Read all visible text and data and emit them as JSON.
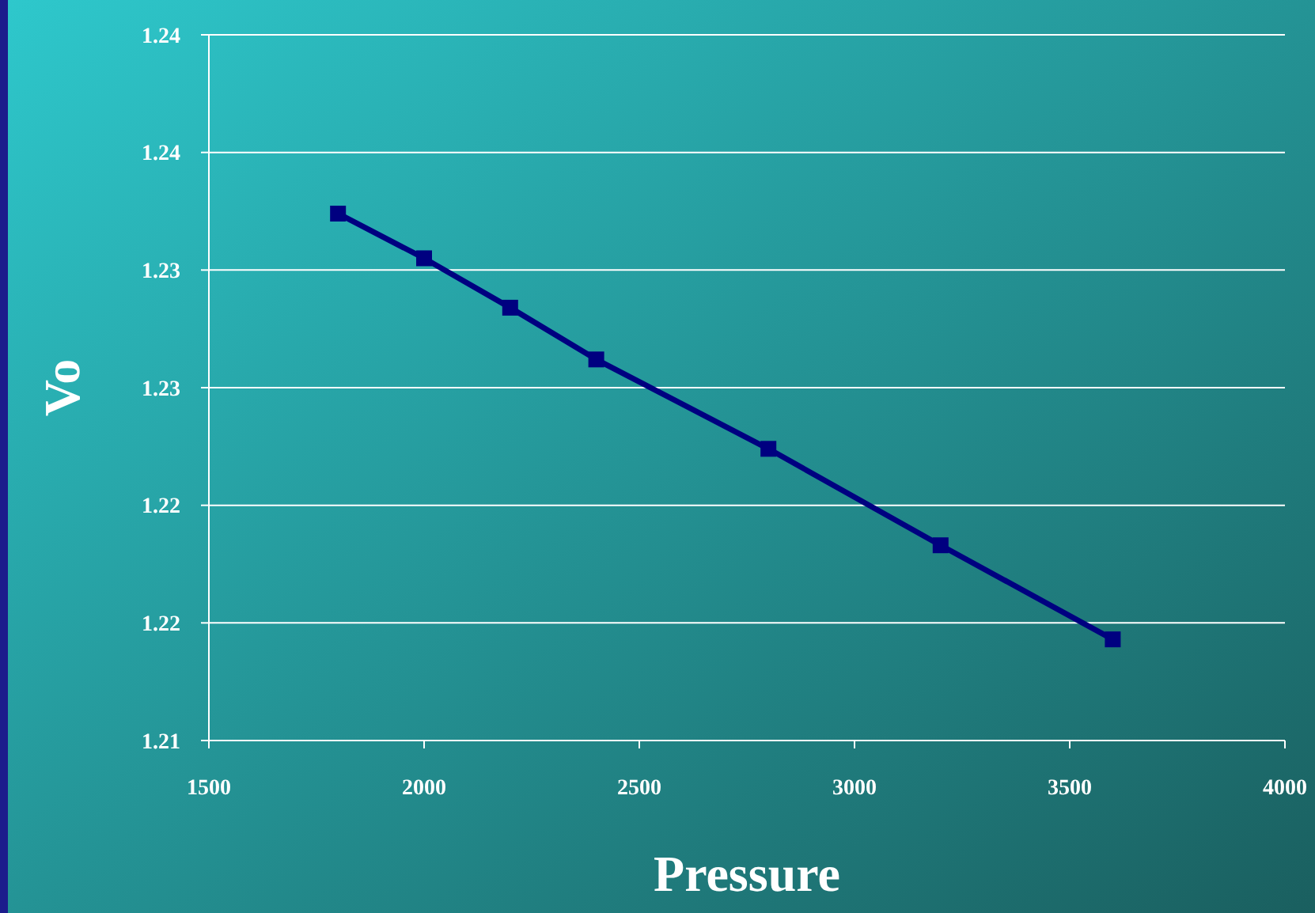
{
  "chart_data": {
    "type": "line",
    "xlabel": "Pressure",
    "ylabel": "Vo",
    "x": [
      1800,
      2000,
      2200,
      2400,
      2800,
      3200,
      3600
    ],
    "series": [
      {
        "color": "#000080",
        "values": [
          1.2324,
          1.2305,
          1.2284,
          1.2262,
          1.2224,
          1.2183,
          1.2143
        ]
      }
    ],
    "xlim": [
      1500,
      4000
    ],
    "xticks": [
      1500,
      2000,
      2500,
      3000,
      3500,
      4000
    ],
    "ylim": [
      1.21,
      1.24
    ],
    "yticks": [
      1.21,
      {
        "value": 1.215,
        "label": "1.22"
      },
      1.22,
      {
        "value": 1.225,
        "label": "1.23"
      },
      1.23,
      {
        "value": 1.235,
        "label": "1.24"
      },
      1.24
    ],
    "grid": "y",
    "marker": "square",
    "line_style": "solid"
  }
}
